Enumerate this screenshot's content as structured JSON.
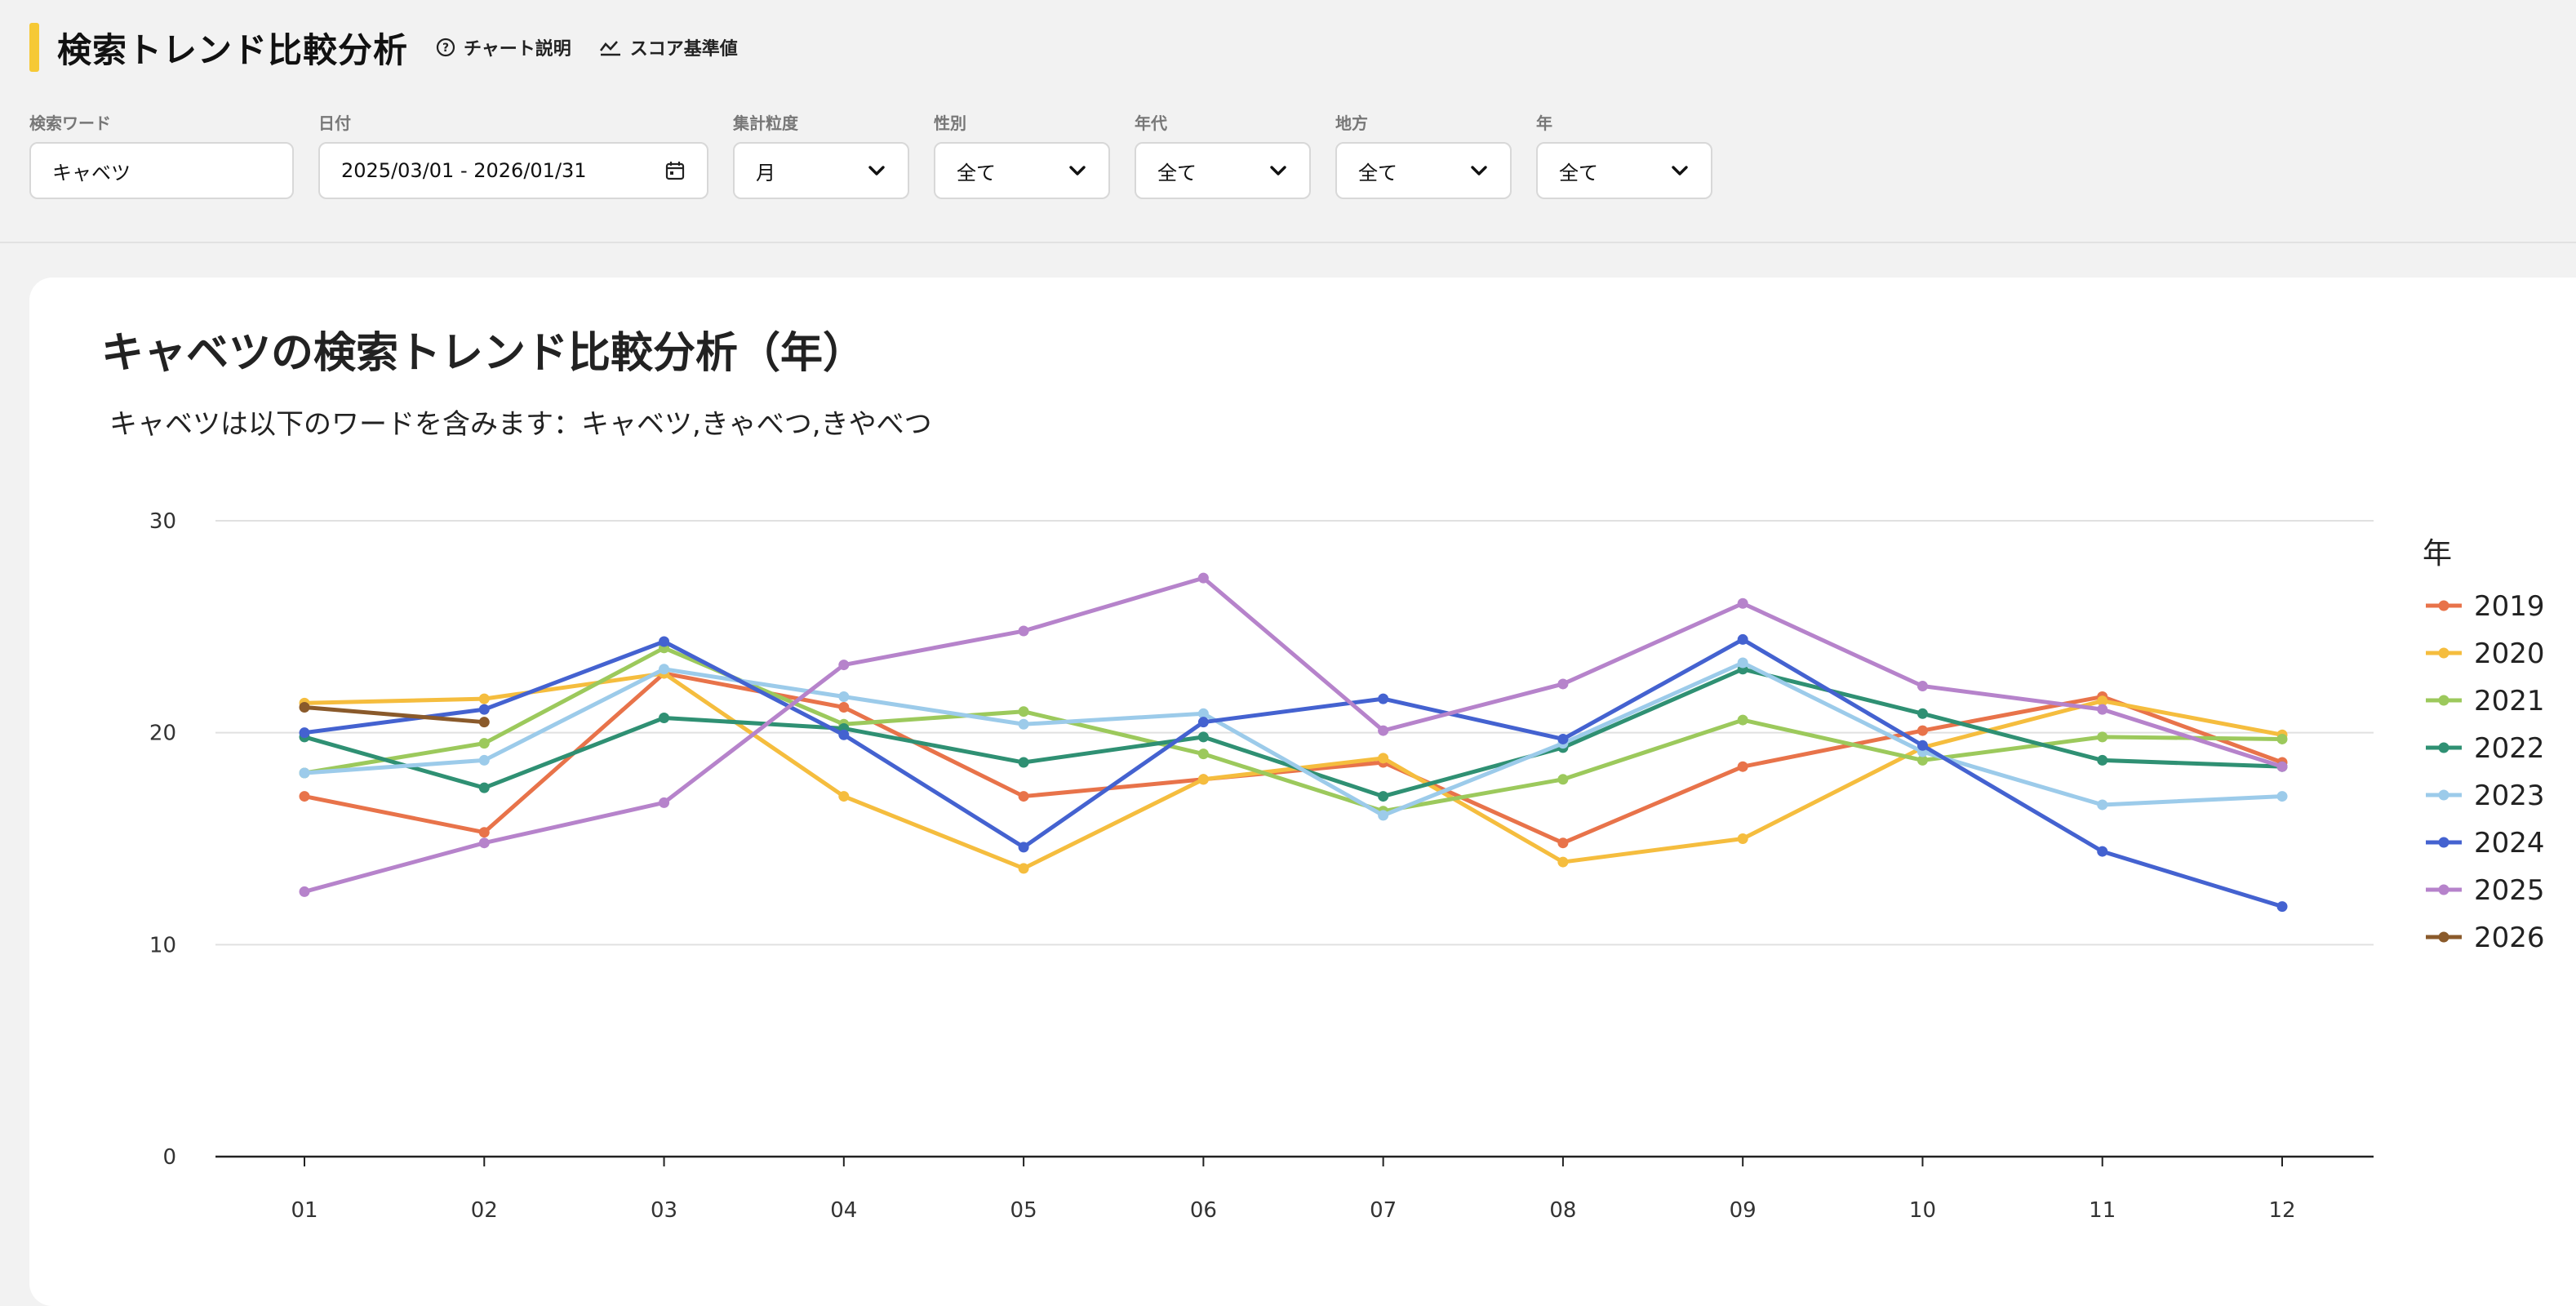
{
  "header": {
    "title": "検索トレンド比較分析",
    "links": [
      {
        "label": "チャート説明",
        "icon": "help-circle-icon"
      },
      {
        "label": "スコア基準値",
        "icon": "trend-line-icon"
      }
    ]
  },
  "filters": {
    "keyword": {
      "label": "検索ワード",
      "value": "キャベツ"
    },
    "date": {
      "label": "日付",
      "value": "2025/03/01 - 2026/01/31",
      "icon": "calendar-icon"
    },
    "granularity": {
      "label": "集計粒度",
      "value": "月"
    },
    "gender": {
      "label": "性別",
      "value": "全て"
    },
    "age": {
      "label": "年代",
      "value": "全て"
    },
    "region": {
      "label": "地方",
      "value": "全て"
    },
    "year": {
      "label": "年",
      "value": "全て"
    }
  },
  "chart_data": {
    "type": "line",
    "title": "キャベツの検索トレンド比較分析（年）",
    "subtitle": "キャベツは以下のワードを含みます：キャベツ,きゃべつ,きやべつ",
    "categories": [
      "01",
      "02",
      "03",
      "04",
      "05",
      "06",
      "07",
      "08",
      "09",
      "10",
      "11",
      "12"
    ],
    "ylim": [
      0,
      30
    ],
    "yticks": [
      0,
      10,
      20,
      30
    ],
    "grid": true,
    "legend_title": "年",
    "legend_position": "right",
    "series": [
      {
        "name": "2019",
        "color": "#e8734a",
        "values": [
          17.0,
          15.3,
          22.8,
          21.2,
          17.0,
          17.8,
          18.6,
          14.8,
          18.4,
          20.1,
          21.7,
          18.6
        ]
      },
      {
        "name": "2020",
        "color": "#f5bd3e",
        "values": [
          21.4,
          21.6,
          22.8,
          17.0,
          13.6,
          17.8,
          18.8,
          13.9,
          15.0,
          19.3,
          21.5,
          19.9
        ]
      },
      {
        "name": "2021",
        "color": "#9cc95c",
        "values": [
          18.1,
          19.5,
          24.0,
          20.4,
          21.0,
          19.0,
          16.3,
          17.8,
          20.6,
          18.7,
          19.8,
          19.7
        ]
      },
      {
        "name": "2022",
        "color": "#2f9073",
        "values": [
          19.8,
          17.4,
          20.7,
          20.2,
          18.6,
          19.8,
          17.0,
          19.3,
          23.0,
          20.9,
          18.7,
          18.4
        ]
      },
      {
        "name": "2023",
        "color": "#9ccbea",
        "values": [
          18.1,
          18.7,
          23.0,
          21.7,
          20.4,
          20.9,
          16.1,
          19.5,
          23.3,
          19.1,
          16.6,
          17.0
        ]
      },
      {
        "name": "2024",
        "color": "#4462d0",
        "values": [
          20.0,
          21.1,
          24.3,
          19.9,
          14.6,
          20.5,
          21.6,
          19.7,
          24.4,
          19.4,
          14.4,
          11.8
        ]
      },
      {
        "name": "2025",
        "color": "#b683cb",
        "values": [
          12.5,
          14.8,
          16.7,
          23.2,
          24.8,
          27.3,
          20.1,
          22.3,
          26.1,
          22.2,
          21.1,
          18.4
        ]
      },
      {
        "name": "2026",
        "color": "#8a5a2b",
        "values": [
          21.2,
          20.5,
          null,
          null,
          null,
          null,
          null,
          null,
          null,
          null,
          null,
          null
        ]
      }
    ]
  }
}
